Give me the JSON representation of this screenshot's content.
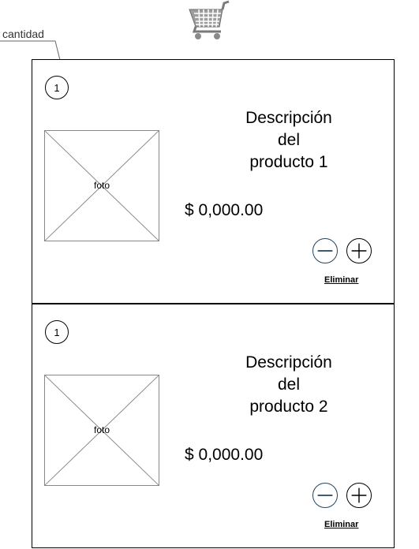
{
  "header": {
    "cart_icon": "shopping-cart-icon",
    "callout_label": "cantidad"
  },
  "products": [
    {
      "quantity": "1",
      "photo_label": "foto",
      "description": [
        "Descripción",
        "del",
        "producto 1"
      ],
      "price": "$ 0,000.00",
      "remove_label": "Eliminar"
    },
    {
      "quantity": "1",
      "photo_label": "foto",
      "description": [
        "Descripción",
        "del",
        "producto 2"
      ],
      "price": "$ 0,000.00",
      "remove_label": "Eliminar"
    }
  ],
  "colors": {
    "minus_button": "#23445d",
    "plus_button": "#000000",
    "placeholder_border": "#888888"
  },
  "icons": {
    "minus": "minus-circle-icon",
    "plus": "plus-circle-icon"
  }
}
